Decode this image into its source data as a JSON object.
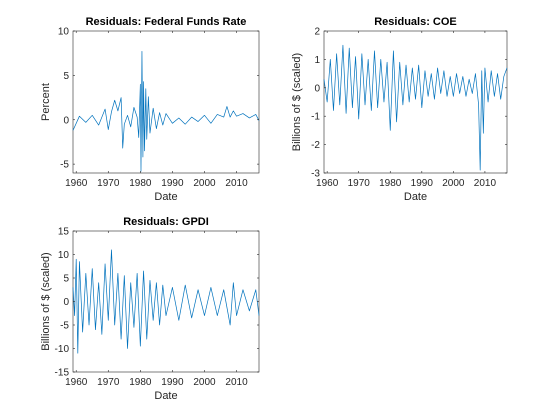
{
  "chart_data": [
    {
      "type": "line",
      "title": "Residuals: Federal Funds Rate",
      "xlabel": "Date",
      "ylabel": "Percent",
      "xlim": [
        1959,
        2017
      ],
      "ylim": [
        -6,
        10
      ],
      "xticks": [
        1960,
        1970,
        1980,
        1990,
        2000,
        2010
      ],
      "yticks": [
        -5,
        0,
        5,
        10
      ],
      "grid": false,
      "color": "#0072BD",
      "series": [
        {
          "x": [
            1959,
            1961,
            1963,
            1965,
            1967,
            1969,
            1970,
            1971,
            1972,
            1973,
            1974,
            1974.5,
            1975,
            1976,
            1977,
            1978,
            1979,
            1979.5,
            1980,
            1980.2,
            1980.5,
            1980.8,
            1981,
            1981.3,
            1981.7,
            1982,
            1982.5,
            1983,
            1984,
            1985,
            1986,
            1987,
            1988,
            1990,
            1992,
            1994,
            1996,
            1998,
            2000,
            2002,
            2004,
            2006,
            2007,
            2008,
            2009,
            2010,
            2012,
            2014,
            2016,
            2017
          ],
          "values": [
            -1.2,
            0.4,
            -0.3,
            0.5,
            -0.6,
            1.2,
            -1.1,
            0.9,
            2.2,
            1.0,
            2.5,
            -3.2,
            -0.5,
            0.5,
            -0.8,
            1.4,
            0.3,
            -2.0,
            4.0,
            -5.8,
            7.7,
            -4.2,
            4.3,
            -3.5,
            3.5,
            -2.2,
            2.6,
            -1.5,
            1.3,
            -1.0,
            0.8,
            -0.6,
            0.7,
            -0.4,
            0.2,
            -0.5,
            0.3,
            -0.2,
            0.5,
            -0.4,
            0.6,
            0.3,
            1.5,
            0.3,
            1.0,
            0.4,
            0.7,
            0.2,
            0.6,
            -0.1
          ]
        }
      ]
    },
    {
      "type": "line",
      "title": "Residuals: COE",
      "xlabel": "Date",
      "ylabel": "Billions of $ (scaled)",
      "xlim": [
        1959,
        2017
      ],
      "ylim": [
        -3,
        2
      ],
      "xticks": [
        1960,
        1970,
        1980,
        1990,
        2000,
        2010
      ],
      "yticks": [
        -3,
        -2,
        -1,
        0,
        1,
        2
      ],
      "grid": false,
      "color": "#0072BD",
      "series": [
        {
          "x": [
            1959,
            1960,
            1961,
            1962,
            1963,
            1964,
            1965,
            1966,
            1967,
            1968,
            1969,
            1970,
            1971,
            1972,
            1973,
            1974,
            1975,
            1976,
            1977,
            1978,
            1979,
            1980,
            1981,
            1982,
            1983,
            1984,
            1985,
            1986,
            1987,
            1988,
            1989,
            1990,
            1991,
            1992,
            1993,
            1994,
            1995,
            1996,
            1997,
            1998,
            1999,
            2000,
            2001,
            2002,
            2003,
            2004,
            2005,
            2006,
            2007,
            2008,
            2008.5,
            2009,
            2009.5,
            2010,
            2011,
            2012,
            2013,
            2014,
            2015,
            2016,
            2017
          ],
          "values": [
            0.3,
            -0.5,
            1.0,
            -0.8,
            1.2,
            -0.6,
            1.5,
            -0.9,
            1.4,
            -0.7,
            1.1,
            -1.1,
            1.2,
            -0.6,
            1.0,
            -0.8,
            1.3,
            -0.7,
            1.0,
            -0.5,
            0.9,
            -1.5,
            1.3,
            -1.2,
            0.9,
            -0.6,
            0.8,
            -0.5,
            0.7,
            -0.4,
            0.8,
            -0.7,
            0.6,
            -0.3,
            0.5,
            -0.4,
            0.7,
            -0.2,
            0.6,
            -0.3,
            0.4,
            -0.3,
            0.5,
            -0.2,
            0.4,
            -0.3,
            0.3,
            -0.2,
            0.5,
            -0.6,
            -2.9,
            0.6,
            -1.6,
            0.7,
            -0.5,
            0.6,
            -0.3,
            0.5,
            -0.4,
            0.4,
            0.7
          ]
        }
      ]
    },
    {
      "type": "line",
      "title": "Residuals: GPDI",
      "xlabel": "Date",
      "ylabel": "Billions of $ (scaled)",
      "xlim": [
        1959,
        2017
      ],
      "ylim": [
        -15,
        15
      ],
      "xticks": [
        1960,
        1970,
        1980,
        1990,
        2000,
        2010
      ],
      "yticks": [
        -15,
        -10,
        -5,
        0,
        5,
        10,
        15
      ],
      "grid": false,
      "color": "#0072BD",
      "series": [
        {
          "x": [
            1959,
            1959.5,
            1960,
            1960.5,
            1961,
            1962,
            1963,
            1964,
            1965,
            1966,
            1967,
            1968,
            1969,
            1970,
            1971,
            1972,
            1973,
            1974,
            1975,
            1976,
            1977,
            1978,
            1979,
            1980,
            1981,
            1982,
            1983,
            1984,
            1985,
            1986,
            1987,
            1988,
            1990,
            1992,
            1994,
            1996,
            1998,
            2000,
            2002,
            2004,
            2006,
            2008,
            2009,
            2010,
            2012,
            2014,
            2016,
            2017
          ],
          "values": [
            3.0,
            -3.0,
            9.0,
            -11.0,
            8.5,
            -6.5,
            6.0,
            -5.0,
            7.0,
            -6.0,
            4.0,
            -7.0,
            8.0,
            -4.0,
            11.0,
            -5.0,
            6.0,
            -8.0,
            5.5,
            -10.0,
            4.0,
            -5.5,
            6.0,
            -9.5,
            6.5,
            -8.0,
            4.5,
            -4.0,
            4.0,
            -5.0,
            3.5,
            -3.0,
            3.0,
            -4.0,
            3.5,
            -3.5,
            2.5,
            -3.0,
            3.0,
            -3.0,
            2.5,
            -5.0,
            4.0,
            -3.0,
            2.5,
            -2.0,
            2.5,
            -3.0
          ]
        }
      ]
    }
  ]
}
